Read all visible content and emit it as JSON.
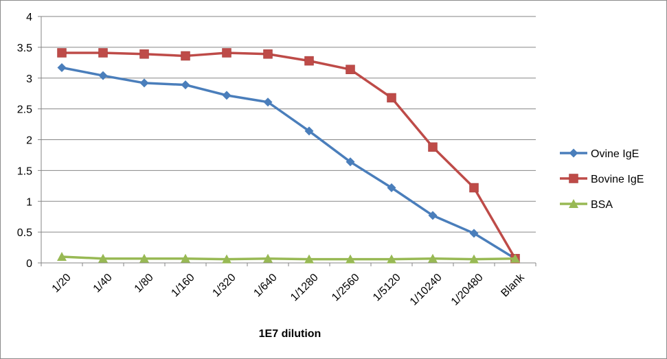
{
  "chart_data": {
    "type": "line",
    "title": "",
    "xlabel": "1E7 dilution",
    "ylabel": "",
    "categories": [
      "1/20",
      "1/40",
      "1/80",
      "1/160",
      "1/320",
      "1/640",
      "1/1280",
      "1/2560",
      "1/5120",
      "1/10240",
      "1/20480",
      "Blank"
    ],
    "ylim": [
      0,
      4
    ],
    "yticks": [
      "0",
      "0.5",
      "1",
      "1.5",
      "2",
      "2.5",
      "3",
      "3.5",
      "4"
    ],
    "grid": true,
    "legend": "right",
    "series": [
      {
        "name": "Ovine IgE",
        "color": "#4a7ebb",
        "marker": "diamond",
        "values": [
          3.17,
          3.04,
          2.92,
          2.89,
          2.72,
          2.61,
          2.14,
          1.64,
          1.22,
          0.77,
          0.48,
          0.07
        ]
      },
      {
        "name": "Bovine IgE",
        "color": "#be4b48",
        "marker": "square",
        "values": [
          3.41,
          3.41,
          3.39,
          3.36,
          3.41,
          3.39,
          3.28,
          3.14,
          2.68,
          1.88,
          1.22,
          0.07
        ]
      },
      {
        "name": "BSA",
        "color": "#98b954",
        "marker": "triangle",
        "values": [
          0.1,
          0.07,
          0.07,
          0.07,
          0.06,
          0.07,
          0.06,
          0.06,
          0.06,
          0.07,
          0.06,
          0.07
        ]
      }
    ]
  }
}
